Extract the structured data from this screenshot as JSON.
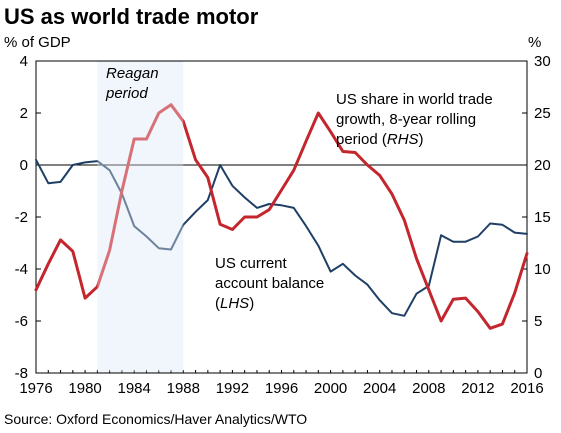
{
  "chart_data": {
    "type": "line",
    "title": "US as world trade motor",
    "left_axis_label": "% of GDP",
    "right_axis_label": "%",
    "ylim_left": [
      -8,
      4
    ],
    "ylim_right": [
      0,
      30
    ],
    "yticks_left": [
      "4",
      "2",
      "0",
      "-2",
      "-4",
      "-6",
      "-8"
    ],
    "yticks_right": [
      "30",
      "25",
      "20",
      "15",
      "10",
      "5",
      "0"
    ],
    "xlim": [
      1976,
      2016
    ],
    "xticks": [
      "1976",
      "1980",
      "1984",
      "1988",
      "1992",
      "1996",
      "2000",
      "2004",
      "2008",
      "2012",
      "2016"
    ],
    "shaded_region": {
      "label_line1": "Reagan",
      "label_line2": "period",
      "x_start": 1981,
      "x_end": 1988,
      "color": "#eaf0fa"
    },
    "series": [
      {
        "name": "US current account balance (LHS)",
        "label_lines": [
          "US current",
          "account balance"
        ],
        "label_paren": "LHS",
        "axis": "left",
        "color": "#1f3f66",
        "x": [
          1976,
          1977,
          1978,
          1979,
          1980,
          1981,
          1982,
          1983,
          1984,
          1985,
          1986,
          1987,
          1988,
          1989,
          1990,
          1991,
          1992,
          1993,
          1994,
          1995,
          1996,
          1997,
          1998,
          1999,
          2000,
          2001,
          2002,
          2003,
          2004,
          2005,
          2006,
          2007,
          2008,
          2009,
          2010,
          2011,
          2012,
          2013,
          2014,
          2015,
          2016
        ],
        "values": [
          0.2,
          -0.7,
          -0.65,
          0.0,
          0.1,
          0.15,
          -0.2,
          -1.1,
          -2.35,
          -2.75,
          -3.2,
          -3.25,
          -2.3,
          -1.8,
          -1.35,
          0.0,
          -0.8,
          -1.25,
          -1.65,
          -1.5,
          -1.55,
          -1.65,
          -2.35,
          -3.1,
          -4.1,
          -3.8,
          -4.25,
          -4.6,
          -5.2,
          -5.7,
          -5.8,
          -4.95,
          -4.65,
          -2.7,
          -2.95,
          -2.95,
          -2.75,
          -2.25,
          -2.3,
          -2.6,
          -2.65
        ]
      },
      {
        "name": "US share in world trade growth, 8-year rolling period (RHS)",
        "label_lines": [
          "US share in world trade",
          "growth, 8-year rolling"
        ],
        "label_prefix": "period (",
        "label_paren": "RHS",
        "axis": "right",
        "color": "#c4262e",
        "x": [
          1976,
          1977,
          1978,
          1979,
          1980,
          1981,
          1982,
          1983,
          1984,
          1985,
          1986,
          1987,
          1988,
          1989,
          1990,
          1991,
          1992,
          1993,
          1994,
          1995,
          1996,
          1997,
          1998,
          1999,
          2000,
          2001,
          2002,
          2003,
          2004,
          2005,
          2006,
          2007,
          2008,
          2009,
          2010,
          2011,
          2012,
          2013,
          2014,
          2015,
          2016
        ],
        "values": [
          8.0,
          10.5,
          12.8,
          11.7,
          7.2,
          8.3,
          11.8,
          17.5,
          22.5,
          22.5,
          25.0,
          25.8,
          24.2,
          20.5,
          18.8,
          14.3,
          13.8,
          15.0,
          15.0,
          15.7,
          17.6,
          19.5,
          22.3,
          25.0,
          23.2,
          21.3,
          21.2,
          20.0,
          19.0,
          17.2,
          14.7,
          11.0,
          8.0,
          5.0,
          7.1,
          7.2,
          5.9,
          4.3,
          4.7,
          7.7,
          11.5
        ]
      }
    ],
    "grid": false,
    "zero_line": true
  },
  "source_text": "Source: Oxford Economics/Haver Analytics/WTO"
}
